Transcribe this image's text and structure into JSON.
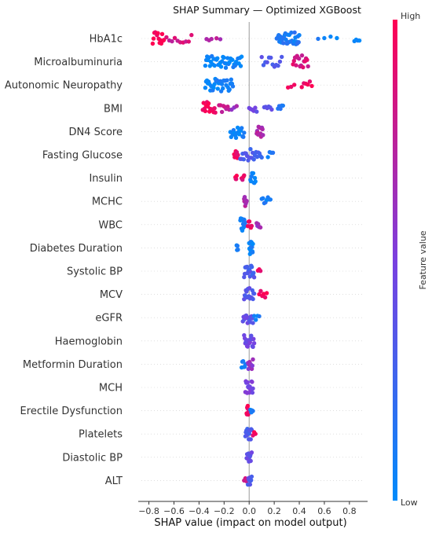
{
  "chart_data": {
    "type": "scatter",
    "subtype": "shap-beeswarm",
    "title": "SHAP Summary — Optimized XGBoost",
    "xlabel": "SHAP value (impact on model output)",
    "xlim": [
      -0.86,
      0.92
    ],
    "xticks": [
      -0.8,
      -0.6,
      -0.4,
      -0.2,
      0.0,
      0.2,
      0.4,
      0.6,
      0.8
    ],
    "xtick_labels": [
      "−0.8",
      "−0.6",
      "−0.4",
      "−0.2",
      "0.0",
      "0.2",
      "0.4",
      "0.6",
      "0.8"
    ],
    "colorbar": {
      "label": "Feature value",
      "high_label": "High",
      "low_label": "Low",
      "high_color": "#ff0052",
      "low_color": "#008bfb"
    },
    "grid": false,
    "features": [
      {
        "name": "HbA1c",
        "clusters": [
          {
            "min": -0.77,
            "max": -0.68,
            "n": 14,
            "v": 1.0
          },
          {
            "min": -0.66,
            "max": -0.46,
            "n": 10,
            "v": 0.82
          },
          {
            "min": -0.34,
            "max": -0.3,
            "n": 3,
            "v": 0.72
          },
          {
            "min": -0.26,
            "max": -0.23,
            "n": 2,
            "v": 0.7
          },
          {
            "min": 0.22,
            "max": 0.4,
            "n": 35,
            "v": 0.12
          },
          {
            "min": 0.55,
            "max": 0.7,
            "n": 4,
            "v": 0.05
          },
          {
            "min": 0.84,
            "max": 0.88,
            "n": 4,
            "v": 0.02
          }
        ]
      },
      {
        "name": "Microalbuminuria",
        "clusters": [
          {
            "min": -0.35,
            "max": -0.06,
            "n": 40,
            "v": 0.05
          },
          {
            "min": 0.1,
            "max": 0.26,
            "n": 12,
            "v": 0.35
          },
          {
            "min": 0.35,
            "max": 0.47,
            "n": 16,
            "v": 0.85
          }
        ]
      },
      {
        "name": "Autonomic Neuropathy",
        "clusters": [
          {
            "min": -0.35,
            "max": -0.13,
            "n": 34,
            "v": 0.05
          },
          {
            "min": 0.31,
            "max": 0.36,
            "n": 3,
            "v": 0.95
          },
          {
            "min": 0.42,
            "max": 0.5,
            "n": 6,
            "v": 0.95
          }
        ]
      },
      {
        "name": "BMI",
        "clusters": [
          {
            "min": -0.37,
            "max": -0.27,
            "n": 16,
            "v": 0.98
          },
          {
            "min": -0.24,
            "max": -0.16,
            "n": 8,
            "v": 0.8
          },
          {
            "min": -0.14,
            "max": -0.1,
            "n": 3,
            "v": 0.65
          },
          {
            "min": 0.0,
            "max": 0.06,
            "n": 6,
            "v": 0.45
          },
          {
            "min": 0.12,
            "max": 0.18,
            "n": 6,
            "v": 0.35
          },
          {
            "min": 0.23,
            "max": 0.27,
            "n": 5,
            "v": 0.15
          }
        ]
      },
      {
        "name": "DN4 Score",
        "clusters": [
          {
            "min": -0.15,
            "max": -0.04,
            "n": 18,
            "v": 0.05
          },
          {
            "min": 0.06,
            "max": 0.11,
            "n": 14,
            "v": 0.7
          }
        ]
      },
      {
        "name": "Fasting Glucose",
        "clusters": [
          {
            "min": -0.12,
            "max": -0.09,
            "n": 8,
            "v": 0.95
          },
          {
            "min": -0.07,
            "max": 0.1,
            "n": 20,
            "v": 0.3
          },
          {
            "min": 0.15,
            "max": 0.19,
            "n": 4,
            "v": 0.1
          }
        ]
      },
      {
        "name": "Insulin",
        "clusters": [
          {
            "min": -0.11,
            "max": -0.1,
            "n": 4,
            "v": 0.95
          },
          {
            "min": -0.06,
            "max": -0.04,
            "n": 4,
            "v": 0.9
          },
          {
            "min": 0.01,
            "max": 0.05,
            "n": 10,
            "v": 0.05
          }
        ]
      },
      {
        "name": "MCHC",
        "clusters": [
          {
            "min": -0.04,
            "max": -0.02,
            "n": 10,
            "v": 0.72
          },
          {
            "min": 0.1,
            "max": 0.17,
            "n": 8,
            "v": 0.08
          }
        ]
      },
      {
        "name": "WBC",
        "clusters": [
          {
            "min": -0.07,
            "max": -0.03,
            "n": 14,
            "v": 0.1
          },
          {
            "min": -0.01,
            "max": 0.02,
            "n": 6,
            "v": 0.9
          },
          {
            "min": 0.06,
            "max": 0.09,
            "n": 6,
            "v": 0.6
          }
        ]
      },
      {
        "name": "Diabetes Duration",
        "clusters": [
          {
            "min": -0.1,
            "max": -0.09,
            "n": 4,
            "v": 0.1
          },
          {
            "min": 0.0,
            "max": 0.03,
            "n": 14,
            "v": 0.05
          }
        ]
      },
      {
        "name": "Systolic BP",
        "clusters": [
          {
            "min": -0.04,
            "max": 0.04,
            "n": 18,
            "v": 0.3
          },
          {
            "min": 0.07,
            "max": 0.09,
            "n": 3,
            "v": 0.92
          }
        ]
      },
      {
        "name": "MCV",
        "clusters": [
          {
            "min": -0.04,
            "max": 0.04,
            "n": 18,
            "v": 0.35
          },
          {
            "min": 0.08,
            "max": 0.14,
            "n": 6,
            "v": 0.92
          }
        ]
      },
      {
        "name": "eGFR",
        "clusters": [
          {
            "min": -0.05,
            "max": 0.03,
            "n": 16,
            "v": 0.4
          },
          {
            "min": 0.04,
            "max": 0.08,
            "n": 4,
            "v": 0.05
          }
        ]
      },
      {
        "name": "Haemoglobin",
        "clusters": [
          {
            "min": -0.04,
            "max": 0.04,
            "n": 18,
            "v": 0.45
          }
        ]
      },
      {
        "name": "Metformin Duration",
        "clusters": [
          {
            "min": -0.06,
            "max": -0.03,
            "n": 6,
            "v": 0.1
          },
          {
            "min": -0.01,
            "max": 0.03,
            "n": 10,
            "v": 0.6
          }
        ]
      },
      {
        "name": "MCH",
        "clusters": [
          {
            "min": -0.03,
            "max": 0.03,
            "n": 18,
            "v": 0.5
          }
        ]
      },
      {
        "name": "Erectile Dysfunction",
        "clusters": [
          {
            "min": -0.02,
            "max": 0.0,
            "n": 10,
            "v": 0.95
          },
          {
            "min": 0.01,
            "max": 0.03,
            "n": 4,
            "v": 0.05
          }
        ]
      },
      {
        "name": "Platelets",
        "clusters": [
          {
            "min": -0.03,
            "max": 0.02,
            "n": 14,
            "v": 0.3
          },
          {
            "min": 0.03,
            "max": 0.05,
            "n": 3,
            "v": 0.95
          }
        ]
      },
      {
        "name": "Diastolic BP",
        "clusters": [
          {
            "min": -0.02,
            "max": 0.02,
            "n": 12,
            "v": 0.4
          }
        ]
      },
      {
        "name": "ALT",
        "clusters": [
          {
            "min": -0.04,
            "max": -0.02,
            "n": 3,
            "v": 0.85
          },
          {
            "min": -0.01,
            "max": 0.02,
            "n": 8,
            "v": 0.35
          }
        ]
      }
    ]
  }
}
